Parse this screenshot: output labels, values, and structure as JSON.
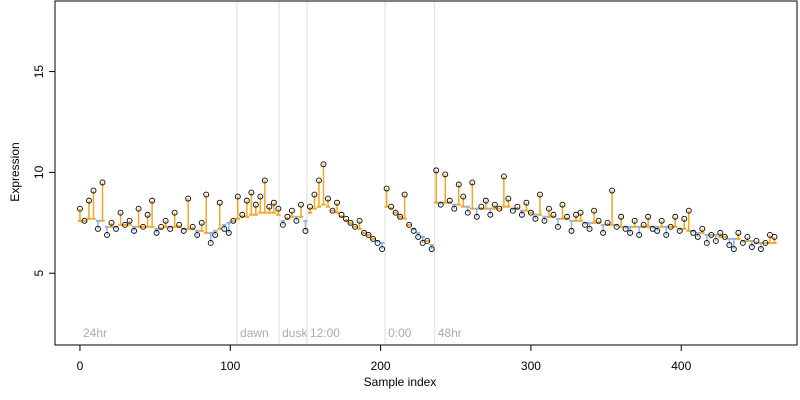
{
  "chart_data": {
    "type": "scatter",
    "x_label": "Sample index",
    "y_label": "Expression",
    "x": [
      0,
      3,
      6,
      9,
      12,
      15,
      18,
      21,
      24,
      27,
      30,
      33,
      36,
      39,
      42,
      45,
      48,
      51,
      54,
      57,
      60,
      63,
      66,
      69,
      72,
      75,
      78,
      81,
      84,
      87,
      90,
      93,
      96,
      99,
      102,
      105,
      108,
      111,
      114,
      117,
      120,
      123,
      126,
      129,
      132,
      135,
      138,
      141,
      144,
      147,
      150,
      153,
      156,
      159,
      162,
      165,
      168,
      171,
      174,
      177,
      180,
      183,
      186,
      189,
      192,
      195,
      198,
      201,
      204,
      207,
      210,
      213,
      216,
      219,
      222,
      225,
      228,
      231,
      234,
      237,
      240,
      243,
      246,
      249,
      252,
      255,
      258,
      261,
      264,
      267,
      270,
      273,
      276,
      279,
      282,
      285,
      288,
      291,
      294,
      297,
      300,
      303,
      306,
      309,
      312,
      315,
      318,
      321,
      324,
      327,
      330,
      333,
      336,
      339,
      342,
      345,
      348,
      351,
      354,
      357,
      360,
      363,
      366,
      369,
      372,
      375,
      378,
      381,
      384,
      387,
      390,
      393,
      396,
      399,
      402,
      405,
      408,
      411,
      414,
      417,
      420,
      423,
      426,
      429,
      432,
      435,
      438,
      441,
      444,
      447,
      450,
      453,
      456,
      459,
      462
    ],
    "values": [
      8.2,
      7.6,
      8.6,
      9.1,
      7.2,
      9.5,
      6.9,
      7.5,
      7.2,
      8.0,
      7.4,
      7.6,
      7.1,
      8.2,
      7.3,
      7.9,
      8.6,
      7.0,
      7.3,
      7.6,
      7.2,
      8.0,
      7.4,
      7.1,
      8.7,
      7.3,
      6.9,
      7.5,
      8.9,
      6.5,
      6.9,
      8.5,
      7.2,
      7.0,
      7.6,
      8.8,
      7.9,
      8.6,
      9.0,
      8.4,
      8.8,
      9.6,
      8.3,
      8.5,
      8.2,
      7.4,
      7.8,
      8.1,
      7.6,
      8.4,
      7.1,
      8.3,
      8.9,
      9.6,
      10.4,
      8.7,
      8.1,
      8.5,
      7.9,
      7.7,
      7.5,
      7.3,
      7.6,
      7.0,
      6.9,
      6.7,
      6.5,
      6.2,
      9.2,
      8.3,
      8.0,
      7.8,
      8.9,
      7.4,
      7.1,
      6.8,
      6.5,
      6.6,
      6.2,
      10.1,
      8.4,
      9.9,
      8.6,
      8.2,
      9.4,
      8.8,
      8.0,
      9.5,
      7.8,
      8.3,
      8.6,
      7.9,
      8.4,
      8.2,
      9.8,
      8.7,
      8.1,
      8.3,
      7.9,
      8.5,
      8.0,
      7.7,
      8.9,
      7.6,
      8.2,
      7.9,
      7.3,
      8.4,
      7.8,
      7.1,
      7.9,
      8.0,
      7.4,
      7.2,
      8.1,
      7.6,
      7.0,
      7.5,
      9.1,
      7.3,
      7.8,
      7.2,
      7.0,
      7.6,
      6.9,
      7.4,
      7.8,
      7.2,
      7.1,
      7.6,
      6.9,
      7.3,
      7.8,
      7.1,
      7.7,
      8.1,
      7.0,
      6.8,
      7.2,
      6.5,
      6.9,
      6.6,
      7.0,
      6.8,
      6.4,
      6.2,
      7.0,
      6.5,
      6.8,
      6.3,
      6.6,
      6.2,
      6.5,
      6.9,
      6.8
    ],
    "fitted": [
      7.6,
      7.6,
      7.7,
      7.7,
      7.6,
      7.6,
      7.3,
      7.3,
      7.3,
      7.4,
      7.4,
      7.4,
      7.3,
      7.3,
      7.3,
      7.3,
      7.3,
      7.2,
      7.2,
      7.3,
      7.3,
      7.3,
      7.3,
      7.2,
      7.2,
      7.2,
      7.1,
      7.1,
      7.0,
      7.0,
      7.1,
      7.2,
      7.4,
      7.5,
      7.6,
      7.7,
      7.8,
      7.8,
      7.9,
      7.9,
      8.0,
      8.0,
      8.0,
      8.0,
      7.9,
      7.6,
      7.7,
      7.8,
      7.8,
      7.8,
      7.6,
      8.0,
      8.2,
      8.3,
      8.4,
      8.3,
      8.1,
      8.0,
      7.8,
      7.6,
      7.5,
      7.3,
      7.2,
      7.0,
      6.9,
      6.7,
      6.6,
      6.5,
      8.3,
      8.2,
      8.0,
      7.8,
      7.7,
      7.4,
      7.2,
      7.0,
      6.8,
      6.6,
      6.4,
      8.5,
      8.5,
      8.5,
      8.5,
      8.4,
      8.4,
      8.3,
      8.3,
      8.2,
      8.2,
      8.2,
      8.2,
      8.2,
      8.2,
      8.2,
      8.3,
      8.3,
      8.2,
      8.2,
      8.1,
      8.1,
      8.0,
      7.9,
      7.9,
      7.8,
      7.8,
      7.8,
      7.7,
      7.7,
      7.7,
      7.6,
      7.6,
      7.6,
      7.5,
      7.5,
      7.5,
      7.5,
      7.4,
      7.4,
      7.4,
      7.4,
      7.3,
      7.3,
      7.3,
      7.3,
      7.3,
      7.3,
      7.3,
      7.3,
      7.3,
      7.3,
      7.3,
      7.3,
      7.3,
      7.2,
      7.2,
      7.1,
      7.1,
      7.0,
      7.0,
      6.9,
      6.9,
      6.9,
      6.8,
      6.8,
      6.7,
      6.7,
      6.7,
      6.6,
      6.6,
      6.6,
      6.5,
      6.5,
      6.5,
      6.5,
      6.5
    ],
    "above_color": "#f5a623",
    "below_color": "#8fb3e0",
    "point_color": "#000000",
    "xlim": [
      -16.6,
      477
    ],
    "ylim": [
      1.44,
      18.5
    ],
    "xticks": [
      0,
      100,
      200,
      300,
      400
    ],
    "yticks": [
      5,
      10,
      15
    ],
    "annotations": [
      {
        "text": "24hr",
        "x": 0,
        "vline": false
      },
      {
        "text": "dawn",
        "x": 104.5,
        "vline": true
      },
      {
        "text": "dusk",
        "x": 132.5,
        "vline": true
      },
      {
        "text": "12:00",
        "x": 151,
        "vline": true
      },
      {
        "text": "0:00",
        "x": 203,
        "vline": true
      },
      {
        "text": "48hr",
        "x": 236,
        "vline": true
      }
    ]
  }
}
